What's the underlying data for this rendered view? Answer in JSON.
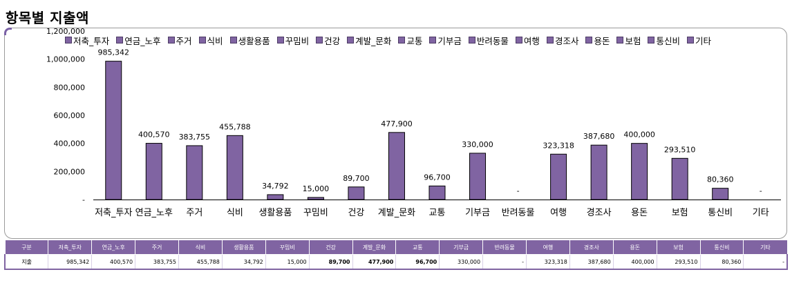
{
  "title": "항목별 지출액",
  "chart_data": {
    "type": "bar",
    "title": "항목별 지출액",
    "categories": [
      "저축_투자",
      "연금_노후",
      "주거",
      "식비",
      "생활용품",
      "꾸밈비",
      "건강",
      "계발_문화",
      "교통",
      "기부금",
      "반려동물",
      "여행",
      "경조사",
      "용돈",
      "보험",
      "통신비",
      "기타"
    ],
    "values": [
      985342,
      400570,
      383755,
      455788,
      34792,
      15000,
      89700,
      477900,
      96700,
      330000,
      0,
      323318,
      387680,
      400000,
      293510,
      80360,
      0
    ],
    "data_labels": [
      "985,342",
      "400,570",
      "383,755",
      "455,788",
      "34,792",
      "15,000",
      "89,700",
      "477,900",
      "96,700",
      "330,000",
      "-",
      "323,318",
      "387,680",
      "400,000",
      "293,510",
      "80,360",
      "-"
    ],
    "ylim": [
      0,
      1200000
    ],
    "yticks": [
      0,
      200000,
      400000,
      600000,
      800000,
      1000000,
      1200000
    ],
    "ytick_labels": [
      "-",
      "200,000",
      "400,000",
      "600,000",
      "800,000",
      "1,000,000",
      "1,200,000"
    ],
    "legend": {
      "entries": [
        "저축_투자",
        "연금_노후",
        "주거",
        "식비",
        "생활용품",
        "꾸밈비",
        "건강",
        "계발_문화",
        "교통",
        "기부금",
        "반려동물",
        "여행",
        "경조사",
        "용돈",
        "보험",
        "통신비",
        "기타"
      ],
      "position": "top"
    },
    "colors": {
      "bar": "#8064a2",
      "bar_edge": "#000000",
      "accent": "#8064a2"
    },
    "grid": false,
    "xlabel": "",
    "ylabel": ""
  },
  "table": {
    "header_label": "구분",
    "row_label": "지출",
    "headers": [
      "저축_투자",
      "연금_노후",
      "주거",
      "식비",
      "생활용품",
      "꾸밈비",
      "건강",
      "계발_문화",
      "교통",
      "기부금",
      "반려동물",
      "여행",
      "경조사",
      "용돈",
      "보험",
      "통신비",
      "기타"
    ],
    "values": [
      "985,342",
      "400,570",
      "383,755",
      "455,788",
      "34,792",
      "15,000",
      "89,700",
      "477,900",
      "96,700",
      "330,000",
      "-",
      "323,318",
      "387,680",
      "400,000",
      "293,510",
      "80,360",
      "-"
    ],
    "bold": [
      false,
      false,
      false,
      false,
      false,
      false,
      true,
      true,
      true,
      false,
      false,
      false,
      false,
      false,
      false,
      false,
      false
    ]
  }
}
